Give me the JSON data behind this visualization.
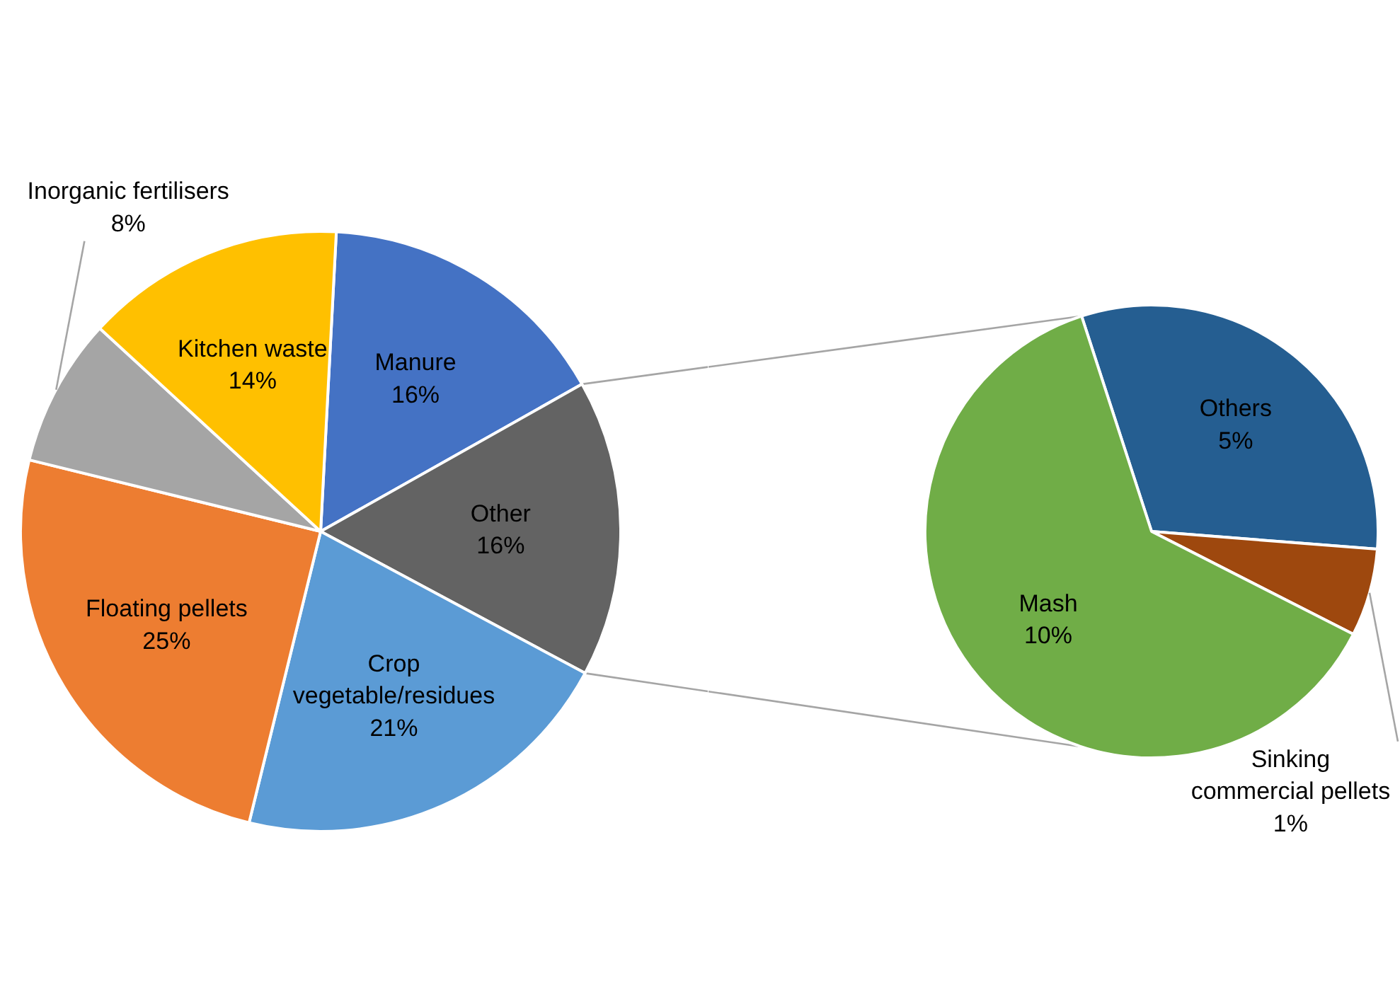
{
  "chart_data": [
    {
      "type": "pie",
      "categories": [
        "Manure",
        "Other",
        "Crop\nvegetable/residues",
        "Floating pellets",
        "Inorganic fertilisers",
        "Kitchen waste"
      ],
      "values": [
        16,
        16,
        21,
        25,
        8,
        14
      ],
      "colors": [
        "#4472c4",
        "#636363",
        "#5b9bd5",
        "#ed7d31",
        "#a5a5a5",
        "#ffc000"
      ],
      "value_labels": [
        "16%",
        "16%",
        "21%",
        "25%",
        "8%",
        "14%"
      ]
    },
    {
      "type": "pie",
      "categories": [
        "Others",
        "Sinking\ncommercial pellets",
        "Mash"
      ],
      "values": [
        5,
        1,
        10
      ],
      "colors": [
        "#255e91",
        "#9e480e",
        "#70ad47"
      ],
      "value_labels": [
        "5%",
        "1%",
        "10%"
      ]
    }
  ]
}
